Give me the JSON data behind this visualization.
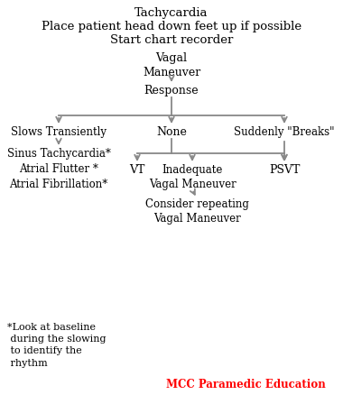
{
  "background_color": "#ffffff",
  "arrow_color": "#888888",
  "text_color": "#000000",
  "red_color": "#ff0000",
  "title_lines": [
    "Tachycardia",
    "Place patient head down feet up if possible",
    "Start chart recorder"
  ],
  "node_vagal": "Vagal\nManeuver",
  "node_response": "Response",
  "node_slows": "Slows Transiently",
  "node_none": "None",
  "node_breaks": "Suddenly \"Breaks\"",
  "node_sinus": "Sinus Tachycardia*\nAtrial Flutter *\nAtrial Fibrillation*",
  "node_vt": "VT",
  "node_inadequate": "Inadequate\nVagal Maneuver",
  "node_psvt": "PSVT",
  "node_consider": "Consider repeating\nVagal Maneuver",
  "footnote": "*Look at baseline\n during the slowing\n to identify the\n rhythm",
  "brand": "MCC Paramedic Education"
}
